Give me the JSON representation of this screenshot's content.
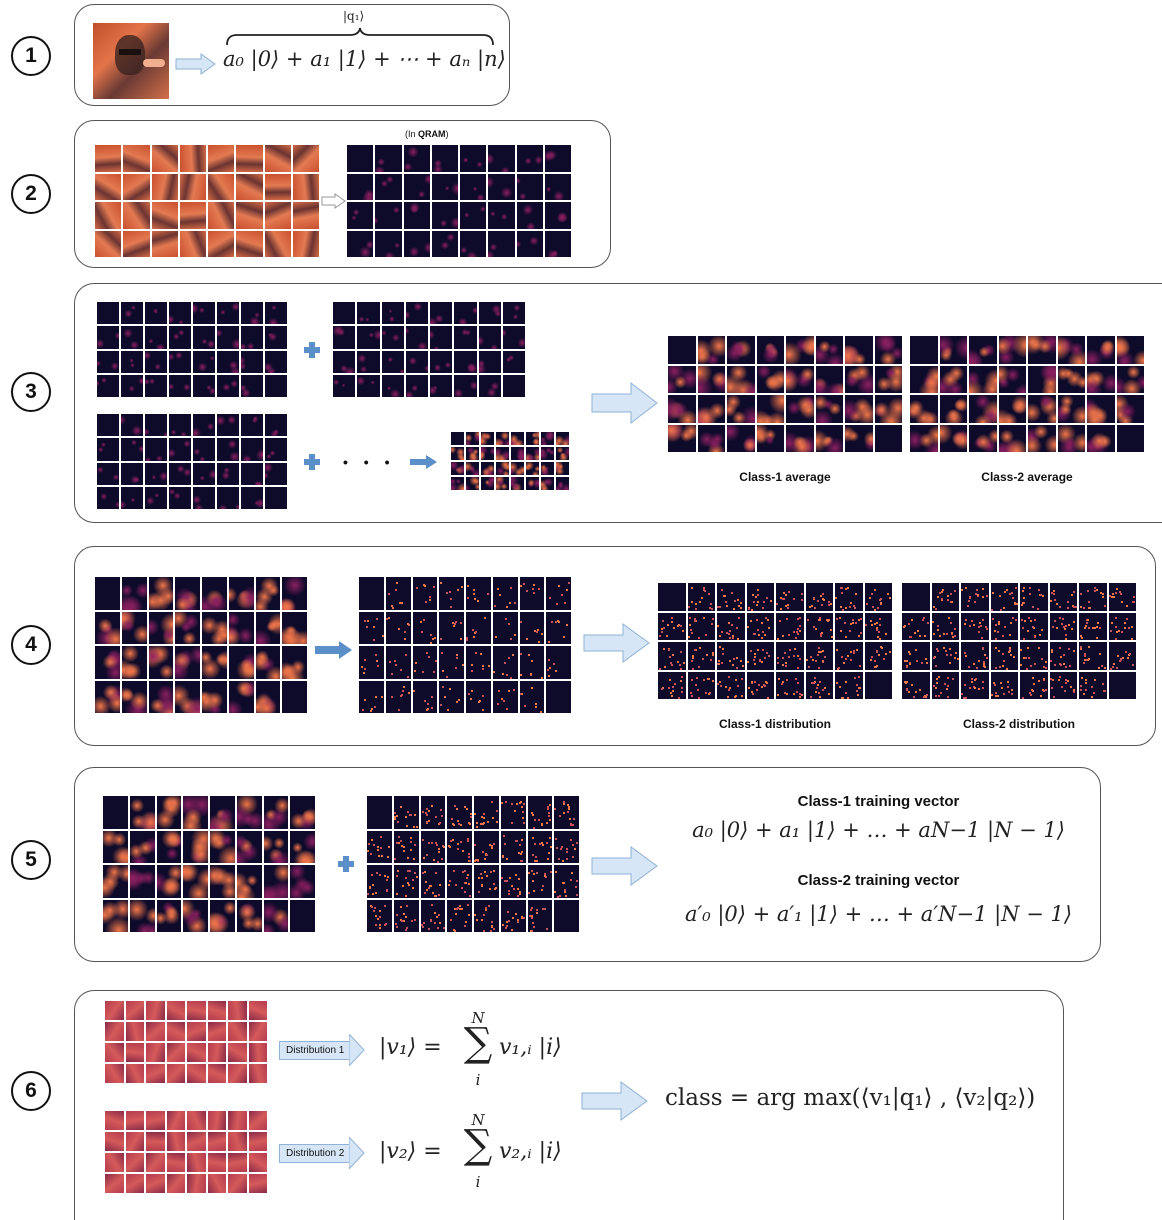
{
  "steps": [
    "1",
    "2",
    "3",
    "4",
    "5",
    "6"
  ],
  "step1": {
    "brace_label": "|q₁⟩",
    "equation": "a₀ |0⟩ + a₁ |1⟩ + ⋯ + aₙ |n⟩"
  },
  "step2": {
    "qram_note_prefix": "(In ",
    "qram_note_bold": "QRAM",
    "qram_note_suffix": ")"
  },
  "step3": {
    "ellipsis": "• • •",
    "class1_caption": "Class-1 average",
    "class2_caption": "Class-2 average"
  },
  "step4": {
    "class1_caption": "Class-1 distribution",
    "class2_caption": "Class-2 distribution"
  },
  "step5": {
    "class1_title": "Class-1 training vector",
    "class1_equation": "a₀ |0⟩ + a₁ |1⟩ + … + aN−1 |N − 1⟩",
    "class2_title": "Class-2 training vector",
    "class2_equation": "a′₀ |0⟩ + a′₁ |1⟩ + … + a′N−1 |N − 1⟩"
  },
  "step6": {
    "dist1_label": "Distribution 1",
    "dist2_label": "Distribution 2",
    "v1_lhs": "|v₁⟩ =",
    "v1_sum_top": "N",
    "v1_sum_bottom": "i",
    "v1_term": "v₁,ᵢ |i⟩",
    "v2_lhs": "|v₂⟩ =",
    "v2_sum_top": "N",
    "v2_sum_bottom": "i",
    "v2_term": "v₂,ᵢ |i⟩",
    "class_equation": "class = arg max(⟨v₁|q₁⟩ , ⟨v₂|q₂⟩)"
  },
  "colors": {
    "panel_border": "#555555",
    "arrow_fill": "#d6e6f6",
    "arrow_stroke": "#8fb2d6",
    "solid_arrow": "#5b8fc9",
    "heatmap_dark": "#0d0a2a",
    "heatmap_mid": "#8a1f5f",
    "heatmap_hot": "#f0764a"
  }
}
